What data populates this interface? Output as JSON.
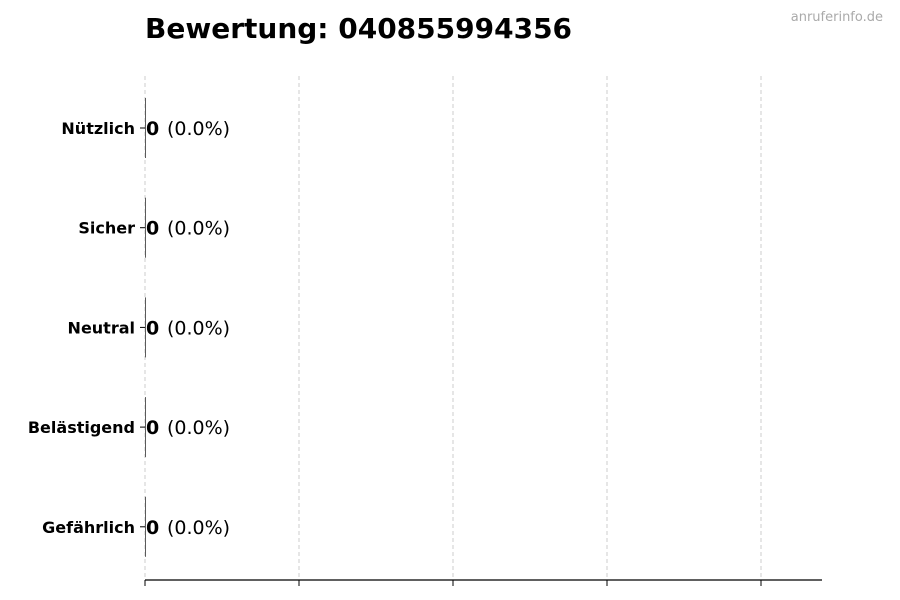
{
  "chart_data": {
    "type": "bar",
    "orientation": "horizontal",
    "title": "Bewertung: 040855994356",
    "categories": [
      "Nützlich",
      "Sicher",
      "Neutral",
      "Belästigend",
      "Gefährlich"
    ],
    "values": [
      0,
      0,
      0,
      0,
      0
    ],
    "data_labels": [
      {
        "count": "0",
        "percent": "(0.0%)"
      },
      {
        "count": "0",
        "percent": "(0.0%)"
      },
      {
        "count": "0",
        "percent": "(0.0%)"
      },
      {
        "count": "0",
        "percent": "(0.0%)"
      },
      {
        "count": "0",
        "percent": "(0.0%)"
      }
    ],
    "xlabel": "",
    "ylabel": "",
    "x_tick_labels_shown": false,
    "grid": "vertical dashed",
    "colors": {
      "bar": "#333333",
      "grid": "#cccccc",
      "axis": "#000000"
    }
  },
  "watermark": "anruferinfo.de"
}
